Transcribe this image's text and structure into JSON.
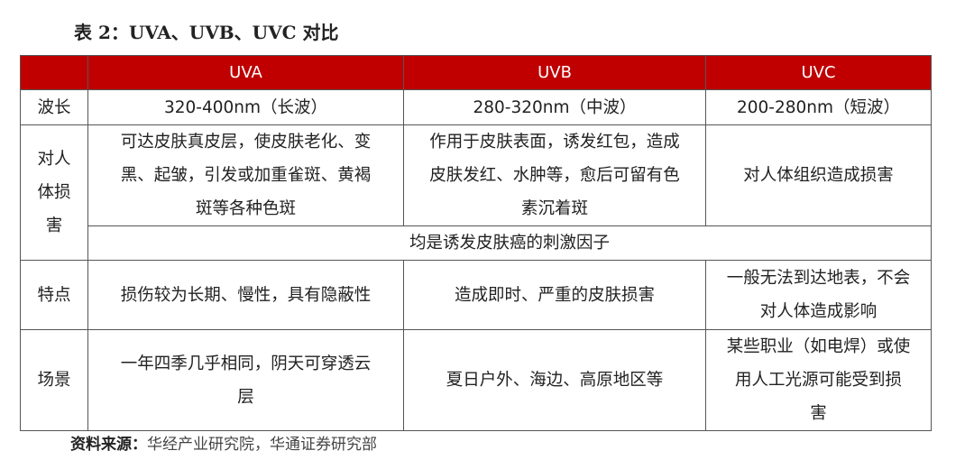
{
  "title": "表 2：UVA、UVB、UVC 对比",
  "table": {
    "header": [
      "",
      "UVA",
      "UVB",
      "UVC"
    ],
    "wavelength": {
      "label": "波长",
      "uva": "320-400nm（长波）",
      "uvb": "280-320nm（中波）",
      "uvc": "200-280nm（短波）"
    },
    "harm": {
      "label": [
        "对人",
        "体损",
        "害"
      ],
      "uva": [
        "可达皮肤真皮层，使皮肤老化、变",
        "黑、起皱，引发或加重雀斑、黄褐",
        "斑等各种色斑"
      ],
      "uvb": [
        "作用于皮肤表面，诱发红包，造成",
        "皮肤发红、水肿等，愈后可留有色",
        "素沉着斑"
      ],
      "uvc": "对人体组织造成损害",
      "common": "均是诱发皮肤癌的刺激因子"
    },
    "features": {
      "label": "特点",
      "uva": "损伤较为长期、慢性，具有隐蔽性",
      "uvb": "造成即时、严重的皮肤损害",
      "uvc": [
        "一般无法到达地表，不会",
        "对人体造成影响"
      ]
    },
    "scene": {
      "label": "场景",
      "uva": [
        "一年四季几乎相同，阴天可穿透云",
        "层"
      ],
      "uvb": "夏日户外、海边、高原地区等",
      "uvc": [
        "某些职业（如电焊）或使",
        "用人工光源可能受到损",
        "害"
      ]
    }
  },
  "source": {
    "label": "资料来源：",
    "text": "华经产业研究院，华通证券研究部"
  },
  "colors": {
    "header_bg": "#c00000",
    "header_text": "#ffffff"
  }
}
